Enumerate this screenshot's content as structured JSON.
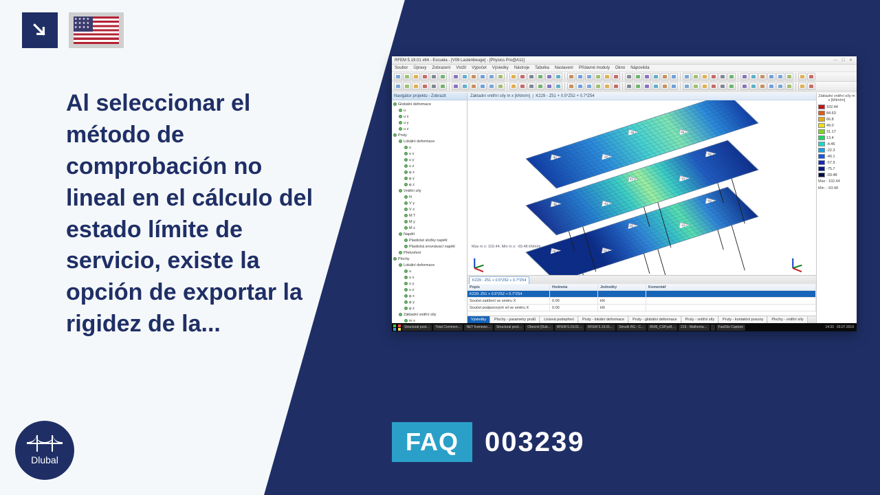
{
  "colors": {
    "brand_navy": "#1f2f66",
    "accent_cyan": "#2aa0c8",
    "page_bg": "#f5f8fa",
    "white": "#ffffff"
  },
  "corner_icon": "arrow-down-right",
  "flag": "us",
  "main_text": "Al seleccionar el método de comprobación no lineal en el cálculo del estado límite de servicio, existe la opción de exportar la rigidez de la...",
  "faq": {
    "label": "FAQ",
    "number": "003239"
  },
  "logo": {
    "text": "Dlubal"
  },
  "screenshot": {
    "title": "RFEM 5.19.01 x64 - Escuela - [V09 Lastenbeuge] - [Physics Pro@A11]",
    "menus": [
      "Soubor",
      "Úpravy",
      "Zobrazení",
      "Vložit",
      "Výpočet",
      "Výsledky",
      "Nástroje",
      "Tabulka",
      "Nastavení",
      "Přídavné moduly",
      "Okno",
      "Nápověda"
    ],
    "toolbar_btn_count_row1": 44,
    "toolbar_btn_count_row2": 44,
    "toolbar_colors": [
      "#7aa7d8",
      "#a0c070",
      "#e0b050",
      "#c86a6a",
      "#808896",
      "#6fb66f",
      "#8874c0",
      "#5fb0c8",
      "#c89060",
      "#70a0e0"
    ],
    "navigator": {
      "title": "Navigátor projektu - Zobrazit",
      "tree": [
        {
          "l": 0,
          "t": "Globální deformace"
        },
        {
          "l": 1,
          "t": "u"
        },
        {
          "l": 1,
          "t": "u x"
        },
        {
          "l": 1,
          "t": "u y"
        },
        {
          "l": 1,
          "t": "u z"
        },
        {
          "l": 0,
          "t": "Pruty"
        },
        {
          "l": 1,
          "t": "Lokální deformace"
        },
        {
          "l": 2,
          "t": "u"
        },
        {
          "l": 2,
          "t": "u x"
        },
        {
          "l": 2,
          "t": "u y"
        },
        {
          "l": 2,
          "t": "u z"
        },
        {
          "l": 2,
          "t": "φ x"
        },
        {
          "l": 2,
          "t": "φ y"
        },
        {
          "l": 2,
          "t": "φ z"
        },
        {
          "l": 1,
          "t": "Vnitřní síly"
        },
        {
          "l": 2,
          "t": "N"
        },
        {
          "l": 2,
          "t": "V y"
        },
        {
          "l": 2,
          "t": "V z"
        },
        {
          "l": 2,
          "t": "M T"
        },
        {
          "l": 2,
          "t": "M y"
        },
        {
          "l": 2,
          "t": "M z"
        },
        {
          "l": 1,
          "t": "Napětí"
        },
        {
          "l": 2,
          "t": "Plastické složky napětí"
        },
        {
          "l": 2,
          "t": "Plastická srovnávací napětí"
        },
        {
          "l": 1,
          "t": "Přetvoření"
        },
        {
          "l": 0,
          "t": "Plochy"
        },
        {
          "l": 1,
          "t": "Lokální deformace"
        },
        {
          "l": 2,
          "t": "u"
        },
        {
          "l": 2,
          "t": "u x"
        },
        {
          "l": 2,
          "t": "u y"
        },
        {
          "l": 2,
          "t": "u z"
        },
        {
          "l": 2,
          "t": "φ x"
        },
        {
          "l": 2,
          "t": "φ y"
        },
        {
          "l": 2,
          "t": "φ z"
        },
        {
          "l": 1,
          "t": "Základní vnitřní síly"
        },
        {
          "l": 2,
          "t": "m x"
        },
        {
          "l": 2,
          "t": "m y"
        },
        {
          "l": 2,
          "t": "m xy"
        },
        {
          "l": 2,
          "t": "v x"
        },
        {
          "l": 2,
          "t": "v y"
        },
        {
          "l": 2,
          "t": "n x"
        },
        {
          "l": 2,
          "t": "n y"
        },
        {
          "l": 2,
          "t": "n xy"
        },
        {
          "l": 1,
          "t": "Hlavní vnitřní síly"
        },
        {
          "l": 1,
          "t": "Návrhové vnitřní síly"
        },
        {
          "l": 1,
          "t": "Základní napětí"
        }
      ]
    },
    "view": {
      "title": "Základní vnitřní síly m x [kNm/m]",
      "subtitle": "K229 - Z51 + 0.5*Z52 + 0.7*Z54",
      "slab_colors": {
        "top": "linear-gradient(100deg,#0a2b88 0%, #0a2b88 28%, #1b55b8 40%, #2f86d8 50%, #36c2ca 62%, #58e0b0 70%, #2f86d8 82%, #0a2b88 100%)",
        "middle": "linear-gradient(100deg,#152d90 0%, #247ad0 22%, #3bd0c6 42%, #9cf0a0 52%, #3bd0c6 62%, #1f5cc2 78%, #0c2d8c 100%)",
        "bottom": "linear-gradient(100deg,#0f3aa6 0%, #2a8bdc 30%, #47d3d0 50%, #7ee6b4 65%, #2a8bdc 82%, #0f3aa6 100%)"
      },
      "tags": [
        "19.81",
        "22.98",
        "29.13",
        "-47.95",
        "-93.48",
        "-35.18",
        "-43.33",
        "37.99",
        "-47.32",
        "-56.14",
        "-60.43",
        "-26.92",
        "-48.68",
        "26.18"
      ],
      "caption": "Max m x: 102.44, Min m x: -93.48 kNm/m"
    },
    "table": {
      "tab_label": "K229 - Z51 + 0.5*Z52 + 0.7*Z54",
      "headers": [
        "Popis",
        "Hodnota",
        "Jednotky",
        "Komentář"
      ],
      "rows": [
        [
          "K229: Z51 + 0.5*Z52 + 0.7*Z54",
          "",
          "",
          ""
        ],
        [
          "Součet zatížení ve směru X",
          "0.00",
          "kN",
          ""
        ],
        [
          "Součet podporových sil ve směru X",
          "0.00",
          "kN",
          ""
        ]
      ],
      "bottom_tabs": [
        "Výsledky",
        "Plochy - parametry prutů",
        "Liniová podepření",
        "Pruty - lokální deformace",
        "Pruty - globální deformace",
        "Pruty - vnitřní síly",
        "Pruty - kontaktní posuny",
        "Plochy - vnitřní síly"
      ]
    },
    "legend": {
      "title": "Základní vnitřní síly  m x [kNm/m]",
      "stops": [
        {
          "c": "#c01818",
          "v": "102.44"
        },
        {
          "c": "#e05a18",
          "v": "84.63"
        },
        {
          "c": "#e8a818",
          "v": "66.8"
        },
        {
          "c": "#e8e018",
          "v": "49.0"
        },
        {
          "c": "#7ad818",
          "v": "31.17"
        },
        {
          "c": "#18d860",
          "v": "13.4"
        },
        {
          "c": "#18d8c8",
          "v": "-4.46"
        },
        {
          "c": "#18a0e8",
          "v": "-22.3"
        },
        {
          "c": "#1858e0",
          "v": "-40.1"
        },
        {
          "c": "#1828c0",
          "v": "-57.9"
        },
        {
          "c": "#0c1880",
          "v": "-75.7"
        },
        {
          "c": "#060c48",
          "v": "-93.48"
        }
      ],
      "max": "Max : 102.44",
      "min": "Min : -93.48"
    },
    "taskbar": {
      "items": [
        "Structural post…",
        "Total Commen…",
        "NET framewo…",
        "Structural post…",
        "Obecné [Dub…",
        "RFEM 5.19.01…",
        "RFEM 5.19.01…",
        "Simulk RG - C…",
        "8506_CSP.pdf…",
        "215 - Mathema…",
        "",
        "FastSto Capture"
      ],
      "time": "14:33",
      "date": "03.07.2019"
    }
  }
}
